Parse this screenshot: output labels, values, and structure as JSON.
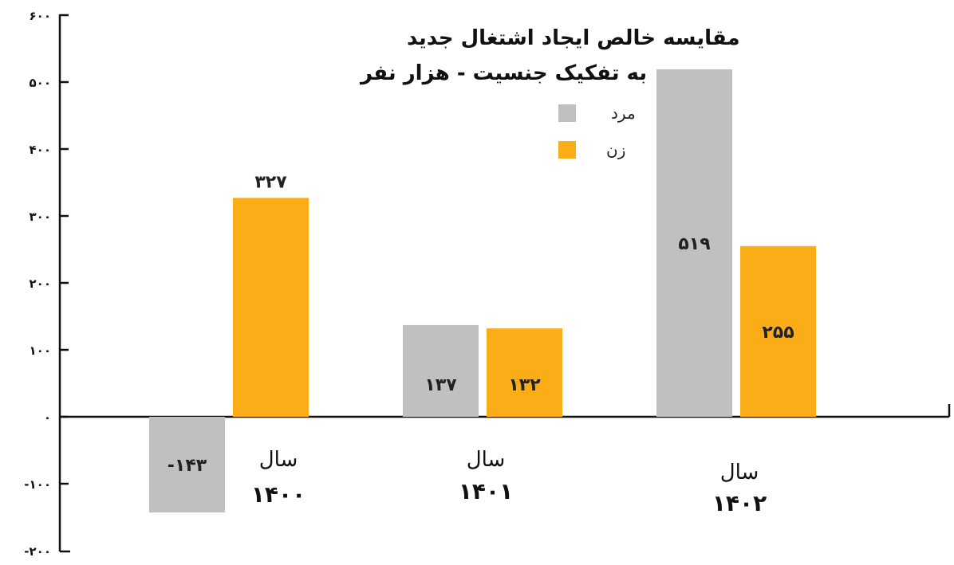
{
  "chart_data": {
    "type": "bar",
    "title": "مقایسه خالص ایجاد اشتغال جدید",
    "subtitle": "به تفکیک جنسیت - هزار نفر",
    "categories": [
      {
        "line1": "سال",
        "line2": "۱۴۰۰"
      },
      {
        "line1": "سال",
        "line2": "۱۴۰۱"
      },
      {
        "line1": "سال",
        "line2": "۱۴۰۲"
      }
    ],
    "series": [
      {
        "name": "مرد",
        "color": "#c0c0c0",
        "values": [
          -143,
          137,
          519
        ],
        "labels": [
          "-۱۴۳",
          "۱۳۷",
          "۵۱۹"
        ]
      },
      {
        "name": "زن",
        "color": "#fbad18",
        "values": [
          327,
          132,
          255
        ],
        "labels": [
          "۳۲۷",
          "۱۳۲",
          "۲۵۵"
        ]
      }
    ],
    "ylim": [
      -200,
      600
    ],
    "yticks": [
      {
        "value": 600,
        "label": "۶۰۰"
      },
      {
        "value": 500,
        "label": "۵۰۰"
      },
      {
        "value": 400,
        "label": "۴۰۰"
      },
      {
        "value": 300,
        "label": "۳۰۰"
      },
      {
        "value": 200,
        "label": "۲۰۰"
      },
      {
        "value": 100,
        "label": "۱۰۰"
      },
      {
        "value": 0,
        "label": "۰"
      },
      {
        "value": -100,
        "label": "-۱۰۰"
      },
      {
        "value": -200,
        "label": "-۲۰۰"
      }
    ],
    "grid": false,
    "legend_position": "top-right"
  }
}
